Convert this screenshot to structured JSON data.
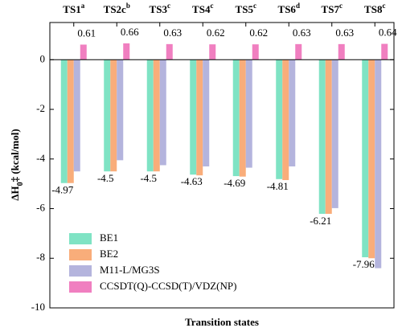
{
  "chart_data": {
    "type": "bar",
    "categories": [
      "TS1",
      "TS2c",
      "TS3",
      "TS4",
      "TS5",
      "TS6",
      "TS7",
      "TS8"
    ],
    "category_superscripts": [
      "a",
      "b",
      "c",
      "c",
      "c",
      "d",
      "c",
      "c"
    ],
    "x_label": "Transition states",
    "y_label": "ΔH",
    "y_label_subscript": "0",
    "y_label_suffix": "‡ (kcal/mol)",
    "series": [
      {
        "name": "BE1",
        "color": "#7fe3c4",
        "values": [
          -4.97,
          -4.5,
          -4.5,
          -4.63,
          -4.69,
          -4.81,
          -6.21,
          -7.96
        ],
        "show_labels": true
      },
      {
        "name": "BE2",
        "color": "#f9ad7a",
        "values": [
          -4.97,
          -4.5,
          -4.5,
          -4.66,
          -4.71,
          -4.85,
          -6.21,
          -8.0
        ]
      },
      {
        "name": "M11-L/MG3S",
        "color": "#b4b4dd",
        "values": [
          -4.5,
          -4.05,
          -4.25,
          -4.3,
          -4.35,
          -4.3,
          -5.98,
          -8.4
        ]
      },
      {
        "name": "CCSDT(Q)-CCSD(T)/VDZ(NP)",
        "color": "#f07fc0",
        "values": [
          0.61,
          0.66,
          0.63,
          0.62,
          0.62,
          0.63,
          0.63,
          0.64
        ],
        "show_labels": true
      }
    ],
    "ylim": [
      -10,
      1.5
    ],
    "yticks": [
      0,
      -2,
      -4,
      -6,
      -8,
      -10
    ],
    "legend": "lower-left"
  }
}
